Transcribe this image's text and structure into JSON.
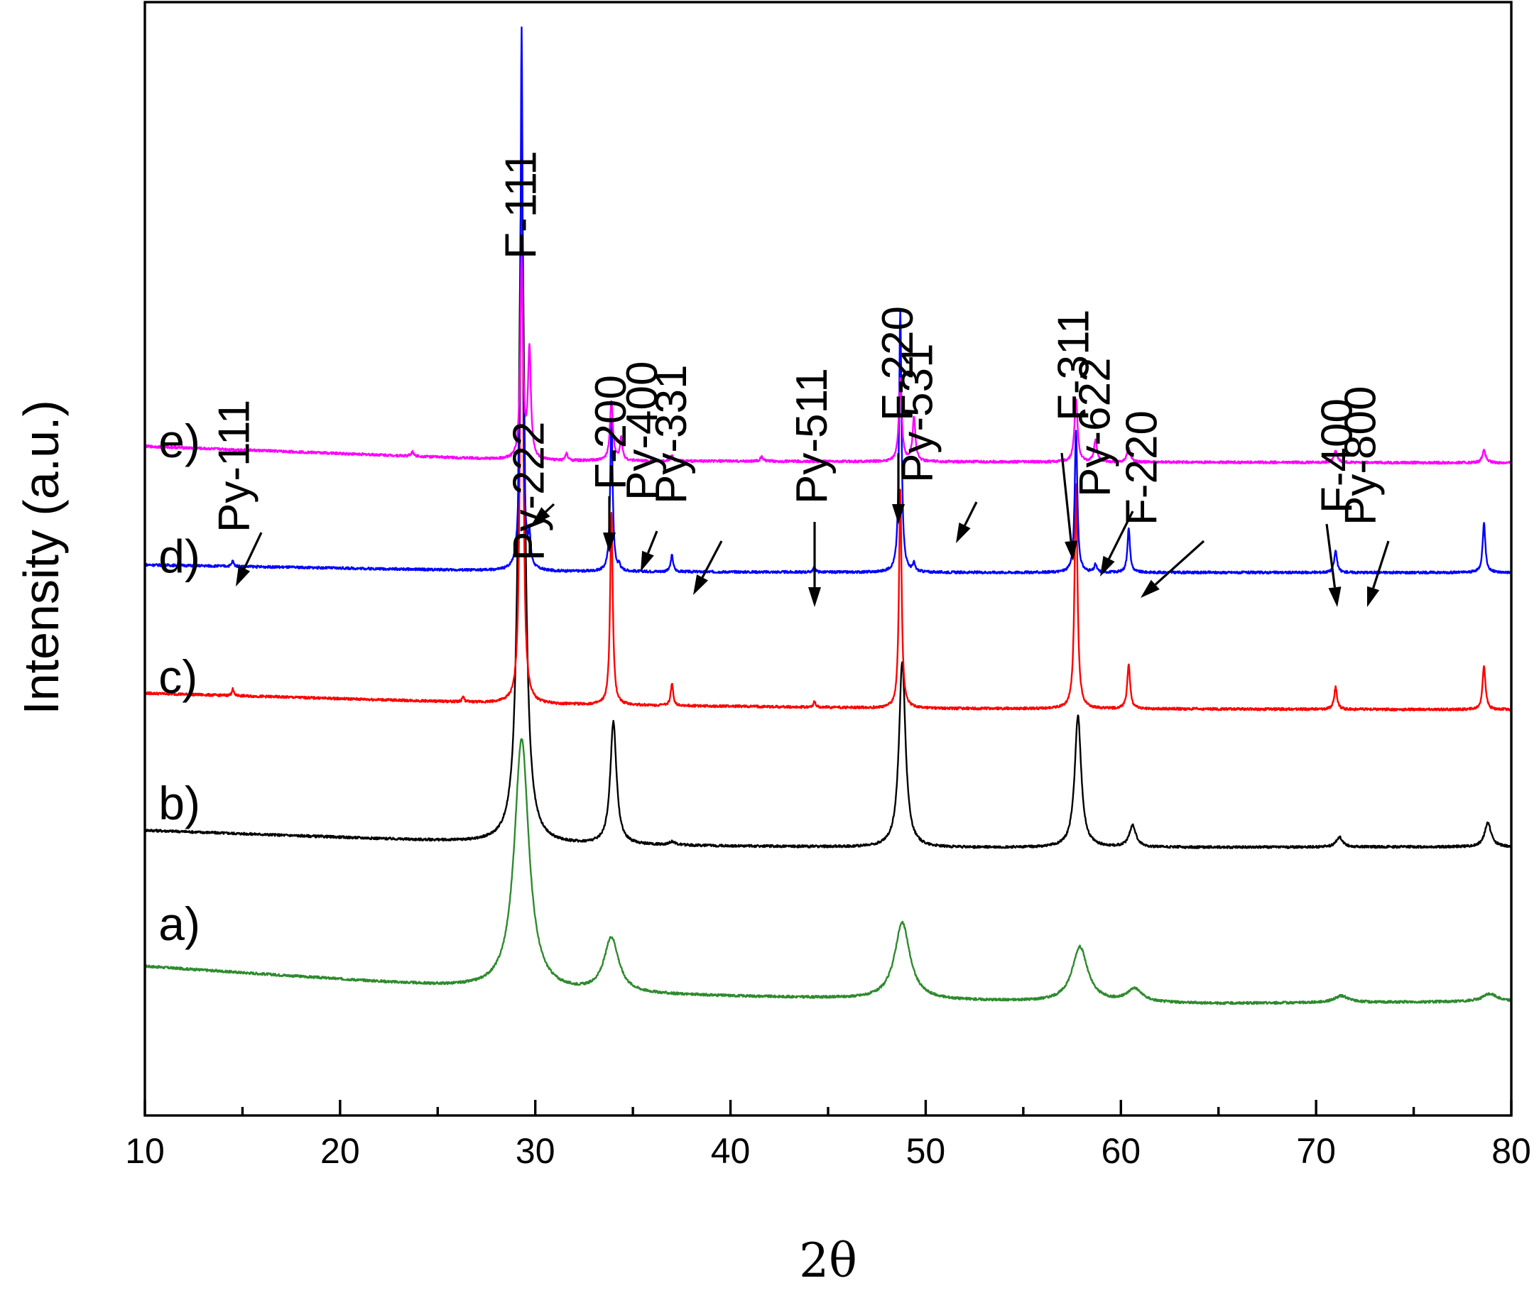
{
  "chart_data": {
    "type": "line",
    "xlabel": "2θ",
    "ylabel": "Intensity (a.u.)",
    "xlim": [
      10,
      80
    ],
    "xticks": [
      10,
      20,
      30,
      40,
      50,
      60,
      70,
      80
    ],
    "xtick_labels": [
      "10",
      "20",
      "30",
      "40",
      "50",
      "60",
      "70",
      "80"
    ],
    "grid": false,
    "legend": "none",
    "series": [
      {
        "name": "a)",
        "color": "#2e8b2e",
        "baseline": [
          [
            10,
            1.36
          ],
          [
            30,
            1.12
          ],
          [
            50,
            1.05
          ],
          [
            65,
            1.02
          ],
          [
            80,
            1.04
          ]
        ],
        "peaks": [
          {
            "x": 29.3,
            "height": 2.3,
            "width": 0.9
          },
          {
            "x": 33.9,
            "height": 0.5,
            "width": 0.9
          },
          {
            "x": 48.8,
            "height": 0.7,
            "width": 0.95
          },
          {
            "x": 57.9,
            "height": 0.5,
            "width": 0.95
          },
          {
            "x": 60.7,
            "height": 0.12,
            "width": 0.9
          },
          {
            "x": 71.3,
            "height": 0.06,
            "width": 0.9
          },
          {
            "x": 78.9,
            "height": 0.07,
            "width": 0.9
          }
        ]
      },
      {
        "name": "b)",
        "color": "#000000",
        "baseline": [
          [
            10,
            2.6
          ],
          [
            30,
            2.47
          ],
          [
            50,
            2.44
          ],
          [
            80,
            2.45
          ]
        ],
        "peaks": [
          {
            "x": 29.3,
            "height": 6.1,
            "width": 0.38
          },
          {
            "x": 34.0,
            "height": 1.12,
            "width": 0.38
          },
          {
            "x": 37.0,
            "height": 0.03,
            "width": 0.4
          },
          {
            "x": 48.8,
            "height": 1.7,
            "width": 0.4
          },
          {
            "x": 57.8,
            "height": 1.2,
            "width": 0.4
          },
          {
            "x": 60.6,
            "height": 0.2,
            "width": 0.4
          },
          {
            "x": 71.2,
            "height": 0.09,
            "width": 0.4
          },
          {
            "x": 78.8,
            "height": 0.22,
            "width": 0.4
          }
        ]
      },
      {
        "name": "c)",
        "color": "#ff0000",
        "baseline": [
          [
            10,
            3.85
          ],
          [
            30,
            3.75
          ],
          [
            50,
            3.71
          ],
          [
            80,
            3.7
          ]
        ],
        "peaks": [
          {
            "x": 14.5,
            "height": 0.06,
            "width": 0.12
          },
          {
            "x": 26.3,
            "height": 0.05,
            "width": 0.12
          },
          {
            "x": 29.3,
            "height": 5.8,
            "width": 0.16
          },
          {
            "x": 33.9,
            "height": 1.75,
            "width": 0.16
          },
          {
            "x": 37.0,
            "height": 0.2,
            "width": 0.15
          },
          {
            "x": 44.3,
            "height": 0.05,
            "width": 0.14
          },
          {
            "x": 48.7,
            "height": 2.0,
            "width": 0.16
          },
          {
            "x": 57.7,
            "height": 2.05,
            "width": 0.18
          },
          {
            "x": 60.4,
            "height": 0.4,
            "width": 0.18
          },
          {
            "x": 71.0,
            "height": 0.2,
            "width": 0.18
          },
          {
            "x": 78.6,
            "height": 0.4,
            "width": 0.18
          }
        ]
      },
      {
        "name": "d)",
        "color": "#0000ff",
        "baseline": [
          [
            10,
            5.02
          ],
          [
            30,
            4.96
          ],
          [
            50,
            4.95
          ],
          [
            80,
            4.95
          ]
        ],
        "peaks": [
          {
            "x": 14.5,
            "height": 0.05,
            "width": 0.12
          },
          {
            "x": 29.3,
            "height": 4.95,
            "width": 0.14
          },
          {
            "x": 29.7,
            "height": 0.26,
            "width": 0.14
          },
          {
            "x": 33.9,
            "height": 1.4,
            "width": 0.15
          },
          {
            "x": 34.3,
            "height": 0.05,
            "width": 0.12
          },
          {
            "x": 37.0,
            "height": 0.15,
            "width": 0.15
          },
          {
            "x": 44.3,
            "height": 0.05,
            "width": 0.14
          },
          {
            "x": 48.7,
            "height": 2.4,
            "width": 0.15
          },
          {
            "x": 49.4,
            "height": 0.07,
            "width": 0.14
          },
          {
            "x": 57.7,
            "height": 1.3,
            "width": 0.16
          },
          {
            "x": 58.7,
            "height": 0.07,
            "width": 0.15
          },
          {
            "x": 60.4,
            "height": 0.4,
            "width": 0.16
          },
          {
            "x": 71.0,
            "height": 0.2,
            "width": 0.17
          },
          {
            "x": 78.6,
            "height": 0.45,
            "width": 0.17
          }
        ]
      },
      {
        "name": "e)",
        "color": "#ff00ff",
        "baseline": [
          [
            10,
            6.1
          ],
          [
            30,
            5.97
          ],
          [
            50,
            5.96
          ],
          [
            80,
            5.95
          ]
        ],
        "peaks": [
          {
            "x": 23.7,
            "height": 0.04,
            "width": 0.15
          },
          {
            "x": 29.3,
            "height": 1.8,
            "width": 0.16
          },
          {
            "x": 29.7,
            "height": 1.0,
            "width": 0.18
          },
          {
            "x": 31.6,
            "height": 0.06,
            "width": 0.15
          },
          {
            "x": 33.9,
            "height": 0.55,
            "width": 0.18
          },
          {
            "x": 34.4,
            "height": 0.2,
            "width": 0.16
          },
          {
            "x": 37.0,
            "height": 0.05,
            "width": 0.15
          },
          {
            "x": 41.6,
            "height": 0.04,
            "width": 0.18
          },
          {
            "x": 48.7,
            "height": 0.75,
            "width": 0.18
          },
          {
            "x": 49.4,
            "height": 0.4,
            "width": 0.18
          },
          {
            "x": 57.7,
            "height": 0.58,
            "width": 0.19
          },
          {
            "x": 58.7,
            "height": 0.2,
            "width": 0.18
          },
          {
            "x": 60.4,
            "height": 0.13,
            "width": 0.2
          },
          {
            "x": 71.0,
            "height": 0.1,
            "width": 0.22
          },
          {
            "x": 78.6,
            "height": 0.11,
            "width": 0.22
          }
        ]
      }
    ],
    "series_labels": [
      {
        "text": "a)",
        "x": 10.7,
        "y": 1.6
      },
      {
        "text": "b)",
        "x": 10.7,
        "y": 2.7
      },
      {
        "text": "c)",
        "x": 10.7,
        "y": 3.85
      },
      {
        "text": "d)",
        "x": 10.7,
        "y": 4.95
      },
      {
        "text": "e)",
        "x": 10.7,
        "y": 6.0
      }
    ],
    "annotations": [
      {
        "text": "F-111",
        "x": 29.3
      },
      {
        "text": "Py-111",
        "x": 14.6
      },
      {
        "text": "Py-222",
        "x": 29.7
      },
      {
        "text": "F-200",
        "x": 33.9
      },
      {
        "text": "Py-400",
        "x": 35.5
      },
      {
        "text": "Py-331",
        "x": 37.0
      },
      {
        "text": "Py-511",
        "x": 44.2
      },
      {
        "text": "F-220",
        "x": 48.6
      },
      {
        "text": "Py-531",
        "x": 49.6
      },
      {
        "text": "F-311",
        "x": 57.6
      },
      {
        "text": "Py-622",
        "x": 58.7
      },
      {
        "text": "F-220",
        "x": 61.1
      },
      {
        "text": "F-400",
        "x": 71.1
      },
      {
        "text": "Py-800",
        "x": 72.3
      }
    ]
  }
}
